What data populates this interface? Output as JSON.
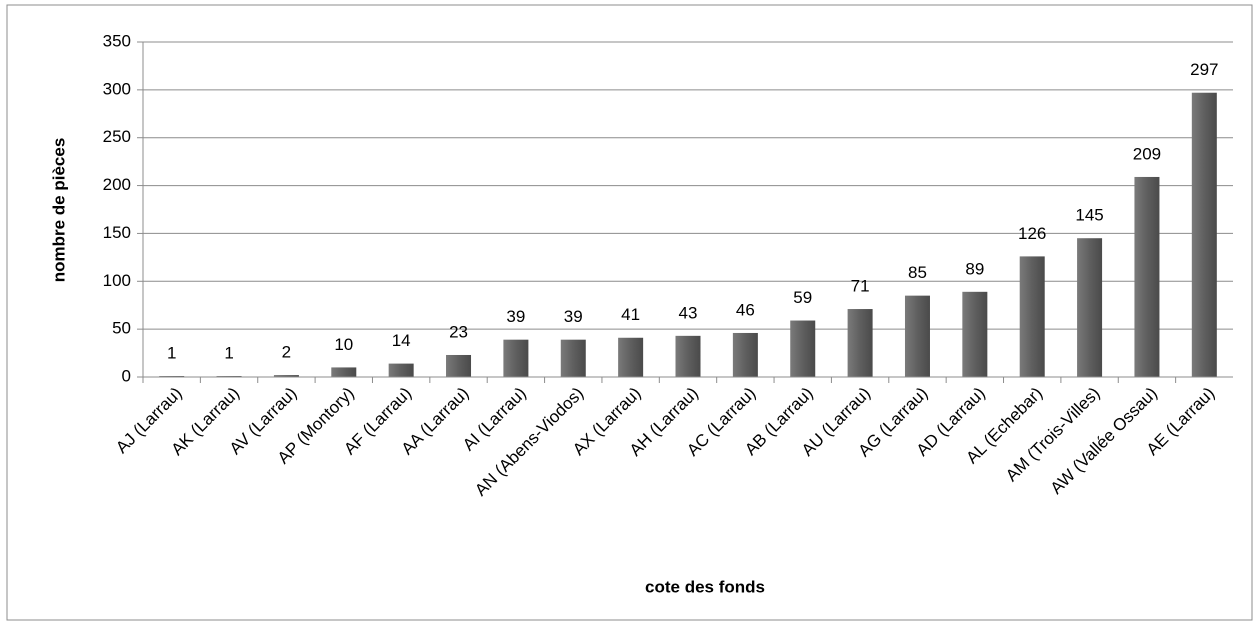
{
  "chart_data": {
    "type": "bar",
    "xlabel": "cote des fonds",
    "ylabel": "nombre de pièces",
    "categories": [
      "AJ (Larrau)",
      "AK (Larrau)",
      "AV (Larrau)",
      "AP (Montory)",
      "AF (Larrau)",
      "AA (Larrau)",
      "AI (Larrau)",
      "AN (Abens-Viodos)",
      "AX (Larrau)",
      "AH (Larrau)",
      "AC (Larrau)",
      "AB (Larrau)",
      "AU (Larrau)",
      "AG (Larrau)",
      "AD (Larrau)",
      "AL (Echebar)",
      "AM (Trois-Villes)",
      "AW (Vallée Ossau)",
      "AE (Larrau)"
    ],
    "values": [
      1,
      1,
      2,
      10,
      14,
      23,
      39,
      39,
      41,
      43,
      46,
      59,
      71,
      85,
      89,
      126,
      145,
      209,
      297
    ],
    "color": "#5f5f5f",
    "ylim": [
      0,
      350
    ],
    "yticks": [
      0,
      50,
      100,
      150,
      200,
      250,
      300,
      350
    ],
    "grid": true
  }
}
